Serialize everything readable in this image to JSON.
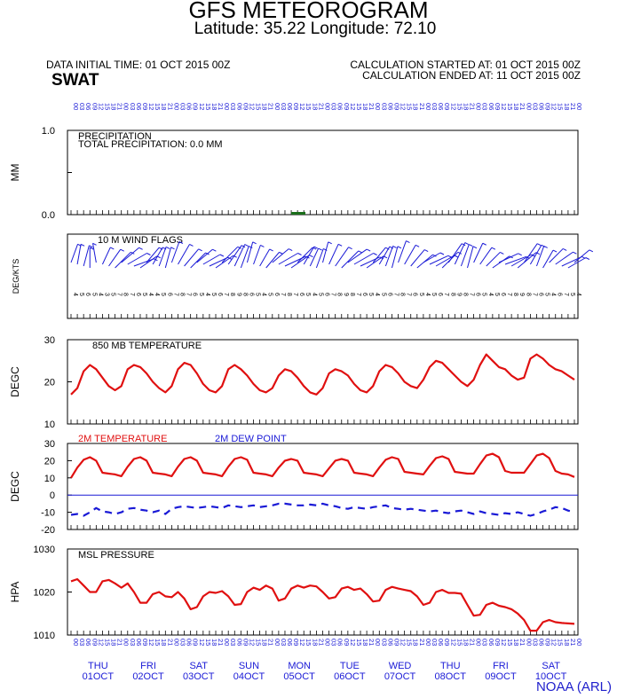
{
  "header": {
    "title": "GFS METEOROGRAM",
    "subtitle": "Latitude: 35.22 Longitude:  72.10",
    "init_time": "DATA INITIAL TIME: 01 OCT 2015 00Z",
    "station": "SWAT",
    "calc_started": "CALCULATION STARTED AT: 01 OCT 2015 00Z",
    "calc_ended": "CALCULATION ENDED AT: 11 OCT 2015 00Z",
    "credit": "NOAA (ARL)"
  },
  "colors": {
    "red": "#e01010",
    "blue": "#1a1ad6",
    "green": "#1a6e1a",
    "black": "#000000"
  },
  "time_axis": {
    "forecast_hours": [
      0,
      3,
      6,
      9,
      12,
      15,
      18,
      21,
      24,
      27,
      30,
      33,
      36,
      39,
      42,
      45,
      48,
      51,
      54,
      57,
      60,
      63,
      66,
      69,
      72,
      75,
      78,
      81,
      84,
      87,
      90,
      93,
      96,
      99,
      102,
      105,
      108,
      111,
      114,
      117,
      120,
      123,
      126,
      129,
      132,
      135,
      138,
      141,
      144,
      147,
      150,
      153,
      156,
      159,
      162,
      165,
      168,
      171,
      174,
      177,
      180,
      183,
      186,
      189,
      192,
      195,
      198,
      201,
      204,
      207,
      210,
      213,
      216,
      219,
      222,
      225,
      228,
      231,
      234,
      237,
      240
    ],
    "hour_labels": [
      "00",
      "03",
      "06",
      "09",
      "12",
      "15",
      "18",
      "21"
    ],
    "days": [
      {
        "weekday": "THU",
        "date": "01OCT"
      },
      {
        "weekday": "FRI",
        "date": "02OCT"
      },
      {
        "weekday": "SAT",
        "date": "03OCT"
      },
      {
        "weekday": "SUN",
        "date": "04OCT"
      },
      {
        "weekday": "MON",
        "date": "05OCT"
      },
      {
        "weekday": "TUE",
        "date": "06OCT"
      },
      {
        "weekday": "WED",
        "date": "07OCT"
      },
      {
        "weekday": "THU",
        "date": "08OCT"
      },
      {
        "weekday": "FRI",
        "date": "09OCT"
      },
      {
        "weekday": "SAT",
        "date": "10OCT"
      }
    ]
  },
  "chart_data": [
    {
      "type": "bar",
      "title": "PRECIPITATION",
      "annotation": "TOTAL PRECIPITATION:   0.0 MM",
      "ylabel": "MM",
      "ylim": [
        0.0,
        1.0
      ],
      "yticks": [
        0.0,
        0.5,
        1.0
      ],
      "ytick_labels": [
        "0.0",
        "",
        "1.0"
      ],
      "values_all_zero": true
    },
    {
      "type": "table",
      "title": "10 M  WIND FLAGS",
      "ylabel": "DEG/KTS",
      "directions_deg": [
        200,
        190,
        195,
        180,
        170,
        205,
        215,
        225,
        230,
        240,
        250,
        235,
        220,
        210,
        200,
        195,
        200,
        210,
        220,
        225,
        230,
        240,
        245,
        235,
        225,
        215,
        205,
        200,
        195,
        200,
        210,
        220,
        230,
        240,
        245,
        235,
        225,
        210,
        205,
        200,
        195,
        205,
        215,
        225,
        235,
        240,
        245,
        235,
        220,
        210,
        200,
        195,
        200,
        210,
        220,
        230,
        240,
        245,
        240,
        225,
        215,
        205,
        200,
        195,
        205,
        215,
        225,
        235,
        245,
        250,
        240,
        230,
        215,
        210,
        200,
        210,
        225,
        235,
        245,
        240,
        230
      ],
      "speeds_kts": [
        4,
        5,
        6,
        5,
        4,
        3,
        5,
        7,
        8,
        7,
        6,
        5,
        4,
        4,
        5,
        6,
        7,
        8,
        7,
        6,
        5,
        4,
        5,
        6,
        7,
        8,
        9,
        8,
        6,
        5,
        4,
        5,
        6,
        7,
        8,
        7,
        6,
        5,
        4,
        5,
        6,
        7,
        8,
        9,
        8,
        7,
        6,
        5,
        4,
        5,
        6,
        7,
        8,
        7,
        6,
        5,
        4,
        5,
        6,
        7,
        8,
        9,
        8,
        7,
        6,
        5,
        4,
        5,
        6,
        7,
        8,
        9,
        8,
        7,
        6,
        5,
        4,
        6,
        7,
        5,
        4
      ]
    },
    {
      "type": "line",
      "title": "850 MB  TEMPERATURE",
      "ylabel": "DEGC",
      "ylim": [
        10,
        30
      ],
      "yticks": [
        10,
        20,
        30
      ],
      "series": [
        {
          "values": [
            17.0,
            18.5,
            22.5,
            24.0,
            23.0,
            21.0,
            19.0,
            18.0,
            19.0,
            23.0,
            24.0,
            23.5,
            22.0,
            20.0,
            18.5,
            17.5,
            19.0,
            23.0,
            24.5,
            24.0,
            22.0,
            19.5,
            18.0,
            17.5,
            19.0,
            23.0,
            24.0,
            23.0,
            21.5,
            19.5,
            18.0,
            17.5,
            18.5,
            21.5,
            23.0,
            22.5,
            21.0,
            19.0,
            17.5,
            17.0,
            18.5,
            22.0,
            23.0,
            22.5,
            21.5,
            19.5,
            18.0,
            17.5,
            19.0,
            22.5,
            24.0,
            23.5,
            22.0,
            20.0,
            19.0,
            18.5,
            20.5,
            23.5,
            25.0,
            24.5,
            23.0,
            21.5,
            20.0,
            19.0,
            20.5,
            24.0,
            26.5,
            25.0,
            23.5,
            23.0,
            21.5,
            20.5,
            21.0,
            25.5,
            26.5,
            25.5,
            24.0,
            23.0,
            22.5,
            21.5,
            20.5
          ]
        }
      ]
    },
    {
      "type": "line",
      "ylabel": "DEGC",
      "ylim": [
        -20,
        30
      ],
      "yticks": [
        -20,
        -10,
        0,
        10,
        20,
        30
      ],
      "series": [
        {
          "name": "2M TEMPERATURE",
          "color": "#e01010",
          "style": "solid",
          "values": [
            10.0,
            16.0,
            20.5,
            22.0,
            20.0,
            13.0,
            12.5,
            12.0,
            11.0,
            16.5,
            21.0,
            22.0,
            20.0,
            13.0,
            12.5,
            12.0,
            11.0,
            16.5,
            21.0,
            22.0,
            20.0,
            13.0,
            12.5,
            12.0,
            11.0,
            16.5,
            21.0,
            22.0,
            20.5,
            13.0,
            12.5,
            12.0,
            11.0,
            16.0,
            20.0,
            21.0,
            20.0,
            13.0,
            12.5,
            12.0,
            11.0,
            15.5,
            20.0,
            21.0,
            20.0,
            13.0,
            12.5,
            12.0,
            11.0,
            16.0,
            20.5,
            22.0,
            21.0,
            13.5,
            13.0,
            12.5,
            12.0,
            17.0,
            21.5,
            22.5,
            21.0,
            13.5,
            13.0,
            12.5,
            12.5,
            18.0,
            23.0,
            24.0,
            22.0,
            14.0,
            13.0,
            13.0,
            13.0,
            18.0,
            23.0,
            24.0,
            21.5,
            14.0,
            12.5,
            12.0,
            10.5
          ]
        },
        {
          "name": "2M   DEW POINT",
          "color": "#1a1ad6",
          "style": "dashed",
          "values": [
            -11.5,
            -11.0,
            -12.0,
            -10.0,
            -7.5,
            -9.5,
            -10.0,
            -11.0,
            -10.0,
            -8.0,
            -7.5,
            -8.5,
            -9.0,
            -10.0,
            -9.0,
            -11.0,
            -8.0,
            -7.0,
            -6.5,
            -7.0,
            -7.5,
            -7.0,
            -6.5,
            -7.0,
            -7.5,
            -6.0,
            -6.5,
            -7.0,
            -6.5,
            -6.0,
            -7.0,
            -6.5,
            -6.0,
            -5.0,
            -5.0,
            -5.5,
            -6.0,
            -6.0,
            -5.5,
            -6.0,
            -5.0,
            -6.0,
            -6.5,
            -7.5,
            -8.0,
            -7.0,
            -7.5,
            -8.0,
            -7.0,
            -6.5,
            -6.0,
            -7.5,
            -8.0,
            -8.5,
            -8.0,
            -8.5,
            -9.0,
            -9.5,
            -9.0,
            -10.0,
            -10.5,
            -9.5,
            -9.0,
            -10.0,
            -11.0,
            -9.5,
            -10.5,
            -11.0,
            -11.5,
            -10.5,
            -11.0,
            -10.0,
            -11.0,
            -12.0,
            -11.0,
            -9.5,
            -8.5,
            -7.0,
            -7.5,
            -9.0,
            -10.0
          ]
        }
      ]
    },
    {
      "type": "line",
      "title": "MSL PRESSURE",
      "ylabel": "HPA",
      "ylim": [
        1010,
        1030
      ],
      "yticks": [
        1010,
        1020,
        1030
      ],
      "series": [
        {
          "values": [
            1022.5,
            1023.0,
            1021.5,
            1020.0,
            1020.0,
            1022.5,
            1022.8,
            1022.0,
            1021.0,
            1022.0,
            1020.0,
            1017.5,
            1017.5,
            1019.5,
            1020.0,
            1019.0,
            1018.8,
            1020.0,
            1018.5,
            1016.0,
            1016.5,
            1019.0,
            1020.0,
            1019.8,
            1020.2,
            1019.0,
            1017.0,
            1017.2,
            1020.0,
            1021.0,
            1020.5,
            1021.5,
            1020.8,
            1018.0,
            1018.5,
            1020.8,
            1021.5,
            1021.0,
            1021.5,
            1021.3,
            1020.0,
            1018.5,
            1018.8,
            1020.8,
            1021.2,
            1020.5,
            1020.8,
            1019.5,
            1017.8,
            1018.0,
            1020.5,
            1021.2,
            1020.8,
            1020.5,
            1020.2,
            1019.0,
            1017.0,
            1017.5,
            1020.0,
            1020.5,
            1019.8,
            1019.8,
            1019.6,
            1017.0,
            1014.5,
            1014.7,
            1017.0,
            1017.5,
            1016.8,
            1016.5,
            1016.0,
            1015.0,
            1013.5,
            1011.0,
            1011.0,
            1013.0,
            1013.5,
            1013.0,
            1012.8,
            1012.7,
            1012.6
          ]
        }
      ]
    }
  ]
}
